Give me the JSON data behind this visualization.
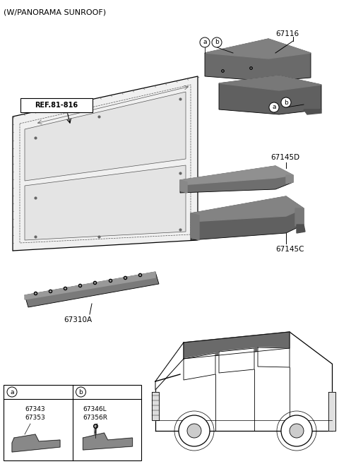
{
  "title": "(W/PANORAMA SUNROOF)",
  "bg_color": "#ffffff",
  "text_color": "#000000",
  "label_67116": "67116",
  "label_67145D": "67145D",
  "label_67145C": "67145C",
  "label_67310A": "67310A",
  "label_ref": "REF.81-816",
  "label_a1_parts": "67343\n67353",
  "label_b1_parts": "67346L\n67356R",
  "gray_dark": "#5a5a5a",
  "gray_mid": "#888888",
  "gray_light": "#cccccc",
  "gray_panel": "#aaaaaa",
  "font_size_label": 7.5,
  "font_size_title": 8.0
}
